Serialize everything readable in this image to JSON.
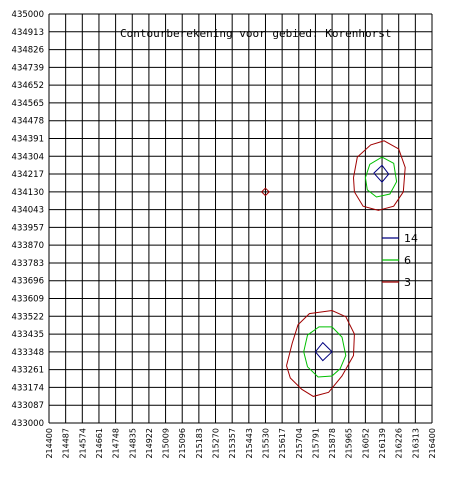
{
  "chart_data": {
    "type": "line",
    "title": "Contourberekening voor gebied: Korenhorst",
    "xlabel": "",
    "ylabel": "",
    "xlim": [
      214400,
      216400
    ],
    "ylim": [
      433000,
      435000
    ],
    "grid": true,
    "x_ticks": [
      "214400",
      "214487",
      "214574",
      "214661",
      "214748",
      "214835",
      "214922",
      "215009",
      "215096",
      "215183",
      "215270",
      "215357",
      "215443",
      "215530",
      "215617",
      "215704",
      "215791",
      "215878",
      "215965",
      "216052",
      "216139",
      "216226",
      "216313",
      "216400"
    ],
    "y_ticks": [
      "435000",
      "434913",
      "434826",
      "434739",
      "434652",
      "434565",
      "434478",
      "434391",
      "434304",
      "434217",
      "434130",
      "434043",
      "433957",
      "433870",
      "433783",
      "433696",
      "433609",
      "433522",
      "433435",
      "433348",
      "433261",
      "433174",
      "433087",
      "433000"
    ],
    "legend_position": "right",
    "series": [
      {
        "name": "14",
        "color": "#000080",
        "contours": [
          [
            [
              216096,
              434222
            ],
            [
              216139,
              434260
            ],
            [
              216174,
              434217
            ],
            [
              216139,
              434178
            ],
            [
              216096,
              434222
            ]
          ],
          [
            [
              215791,
              433348
            ],
            [
              215830,
              433393
            ],
            [
              215878,
              433348
            ],
            [
              215830,
              433305
            ],
            [
              215791,
              433348
            ]
          ]
        ]
      },
      {
        "name": "6",
        "color": "#00c000",
        "contours": [
          [
            [
              216052,
              434200
            ],
            [
              216075,
              434265
            ],
            [
              216139,
              434300
            ],
            [
              216200,
              434270
            ],
            [
              216215,
              434180
            ],
            [
              216180,
              434120
            ],
            [
              216110,
              434105
            ],
            [
              216062,
              434140
            ],
            [
              216052,
              434200
            ]
          ],
          [
            [
              215730,
              433348
            ],
            [
              215750,
              433430
            ],
            [
              215810,
              433470
            ],
            [
              215878,
              433470
            ],
            [
              215930,
              433420
            ],
            [
              215950,
              433330
            ],
            [
              215920,
              433265
            ],
            [
              215878,
              433230
            ],
            [
              215805,
              433225
            ],
            [
              215750,
              433275
            ],
            [
              215730,
              433348
            ]
          ]
        ]
      },
      {
        "name": "3",
        "color": "#a00000",
        "contours": [
          [
            [
              215990,
              434200
            ],
            [
              216010,
              434300
            ],
            [
              216080,
              434360
            ],
            [
              216150,
              434380
            ],
            [
              216226,
              434340
            ],
            [
              216260,
              434250
            ],
            [
              216250,
              434130
            ],
            [
              216200,
              434060
            ],
            [
              216120,
              434040
            ],
            [
              216040,
              434060
            ],
            [
              215995,
              434130
            ],
            [
              215990,
              434200
            ]
          ],
          [
            [
              215510,
              434130
            ],
            [
              215530,
              434148
            ],
            [
              215550,
              434130
            ],
            [
              215530,
              434112
            ],
            [
              215510,
              434130
            ]
          ],
          [
            [
              215640,
              433280
            ],
            [
              215670,
              433390
            ],
            [
              215700,
              433480
            ],
            [
              215760,
              433535
            ],
            [
              215878,
              433550
            ],
            [
              215950,
              433520
            ],
            [
              215995,
              433435
            ],
            [
              215990,
              433330
            ],
            [
              215930,
              433230
            ],
            [
              215860,
              433150
            ],
            [
              215780,
              433130
            ],
            [
              215720,
              433165
            ],
            [
              215660,
              433220
            ],
            [
              215640,
              433280
            ]
          ]
        ]
      }
    ]
  }
}
